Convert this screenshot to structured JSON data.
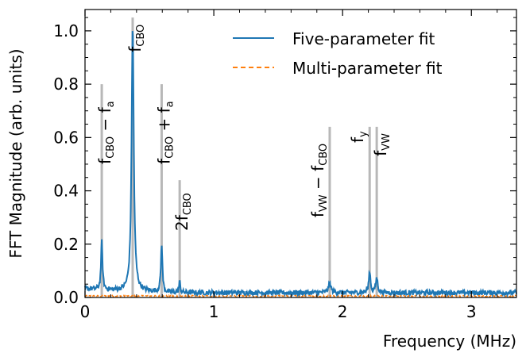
{
  "chart_data": {
    "type": "line",
    "xlabel": "Frequency (MHz)",
    "ylabel": "FFT Magnitude (arb. units)",
    "xlim": [
      0,
      3.35
    ],
    "ylim": [
      0,
      1.08
    ],
    "xticks": [
      0,
      1,
      2,
      3
    ],
    "yticks": [
      0.0,
      0.2,
      0.4,
      0.6,
      0.8,
      1.0
    ],
    "xtick_labels": [
      "0",
      "1",
      "2",
      "3"
    ],
    "ytick_labels": [
      "0.0",
      "0.2",
      "0.4",
      "0.6",
      "0.8",
      "1.0"
    ],
    "grid": false,
    "legend_position": "top-right",
    "colors": {
      "five": "#1f77b4",
      "multi": "#ff7f0e",
      "marker": "#b8b8b8"
    },
    "series": [
      {
        "name": "Five-parameter fit",
        "style": "solid",
        "noise": 0.02,
        "peaks": [
          {
            "f": 0.13,
            "height": 0.18,
            "width": 0.007
          },
          {
            "f": 0.37,
            "height": 1.0,
            "width": 0.01
          },
          {
            "f": 0.595,
            "height": 0.18,
            "width": 0.007
          },
          {
            "f": 0.735,
            "height": 0.04,
            "width": 0.006
          },
          {
            "f": 1.9,
            "height": 0.035,
            "width": 0.012
          },
          {
            "f": 2.21,
            "height": 0.08,
            "width": 0.008
          },
          {
            "f": 2.265,
            "height": 0.055,
            "width": 0.009
          }
        ]
      },
      {
        "name": "Multi-parameter fit",
        "style": "dashed",
        "noise": 0.006,
        "peaks": []
      }
    ],
    "markers": [
      {
        "f": 0.13,
        "top": 0.8,
        "label": {
          "main": "f",
          "sub": "CBO",
          "rest": " − f",
          "sub2": "a"
        }
      },
      {
        "f": 0.37,
        "top": 1.05,
        "label": {
          "main": "f",
          "sub": "CBO",
          "rest": "",
          "sub2": ""
        }
      },
      {
        "f": 0.595,
        "top": 0.8,
        "label": {
          "main": "f",
          "sub": "CBO",
          "rest": " + f",
          "sub2": "a"
        }
      },
      {
        "f": 0.735,
        "top": 0.44,
        "label": {
          "main": "2f",
          "sub": "CBO",
          "rest": "",
          "sub2": ""
        }
      },
      {
        "f": 1.9,
        "top": 0.64,
        "label": {
          "main": "f",
          "sub": "VW",
          "rest": " − f",
          "sub2": "CBO"
        }
      },
      {
        "f": 2.21,
        "top": 0.64,
        "label": {
          "main": "f",
          "sub": "y",
          "rest": "",
          "sub2": ""
        }
      },
      {
        "f": 2.265,
        "top": 0.64,
        "label": {
          "main": "f",
          "sub": "VW",
          "rest": "",
          "sub2": ""
        }
      }
    ]
  }
}
